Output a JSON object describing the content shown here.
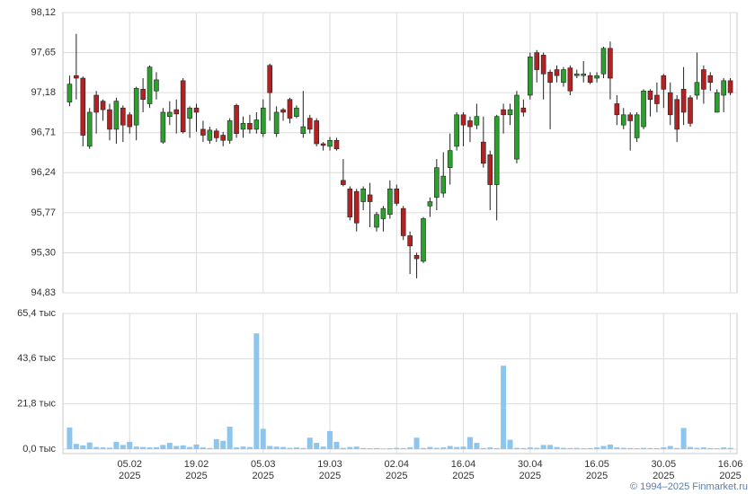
{
  "chart_data": [
    {
      "type": "candlestick",
      "up_color": "#2ca02c",
      "down_color": "#b22222",
      "grid": true,
      "ylim": [
        94.83,
        98.12
      ],
      "yticks": [
        {
          "value": 94.83,
          "label": "94,83"
        },
        {
          "value": 95.3,
          "label": "95,30"
        },
        {
          "value": 95.77,
          "label": "95,77"
        },
        {
          "value": 96.24,
          "label": "96,24"
        },
        {
          "value": 96.71,
          "label": "96,71"
        },
        {
          "value": 97.18,
          "label": "97,18"
        },
        {
          "value": 97.65,
          "label": "97,65"
        },
        {
          "value": 98.12,
          "label": "98,12"
        }
      ],
      "open": [
        97.07,
        97.38,
        97.35,
        96.55,
        97.15,
        97.08,
        96.98,
        96.75,
        97.0,
        96.92,
        96.8,
        97.22,
        97.05,
        97.2,
        96.6,
        96.9,
        96.98,
        97.32,
        96.88,
        97.0,
        96.75,
        96.62,
        96.73,
        96.68,
        96.62,
        97.03,
        96.75,
        96.82,
        96.75,
        96.7,
        97.5,
        96.7,
        96.98,
        97.1,
        96.9,
        96.7,
        96.88,
        96.85,
        96.58,
        96.55,
        96.62,
        96.15,
        96.05,
        96.02,
        95.9,
        95.98,
        95.6,
        95.7,
        95.75,
        96.05,
        95.82,
        95.5,
        95.27,
        95.2,
        95.85,
        95.95,
        96.0,
        96.3,
        96.55,
        96.92,
        96.85,
        96.8,
        96.6,
        96.45,
        96.1,
        96.98,
        96.92,
        96.4,
        97.0,
        97.15,
        97.65,
        97.62,
        97.42,
        97.45,
        97.3,
        97.47,
        97.38,
        97.38,
        97.38,
        97.35,
        97.4,
        97.7,
        97.05,
        96.8,
        96.92,
        96.65,
        96.78,
        97.2,
        97.15,
        97.38,
        97.18,
        97.1,
        97.22,
        97.12,
        97.15,
        97.45,
        97.38,
        96.95,
        97.15,
        97.32
      ],
      "high": [
        97.38,
        97.87,
        97.37,
        97.0,
        97.2,
        97.1,
        97.05,
        97.12,
        97.03,
        96.95,
        97.25,
        97.35,
        97.5,
        97.42,
        97.0,
        97.08,
        97.1,
        97.35,
        97.02,
        97.05,
        96.85,
        96.78,
        96.76,
        96.72,
        96.88,
        97.05,
        96.9,
        96.92,
        96.95,
        97.1,
        97.52,
        97.02,
        97.0,
        97.12,
        97.03,
        97.2,
        96.92,
        96.88,
        96.6,
        96.66,
        96.65,
        96.4,
        96.08,
        96.05,
        96.08,
        96.12,
        95.78,
        95.85,
        96.15,
        96.1,
        95.85,
        95.55,
        95.3,
        95.72,
        95.95,
        96.4,
        96.48,
        96.7,
        96.95,
        96.95,
        96.9,
        97.05,
        96.9,
        96.5,
        96.92,
        97.05,
        97.05,
        97.2,
        97.1,
        97.65,
        97.68,
        97.65,
        97.45,
        97.5,
        97.48,
        97.5,
        97.45,
        97.55,
        97.42,
        97.42,
        97.72,
        97.78,
        97.15,
        97.0,
        96.95,
        96.95,
        97.22,
        97.22,
        97.3,
        97.4,
        97.3,
        97.15,
        97.48,
        97.15,
        97.65,
        97.5,
        97.42,
        97.22,
        97.35,
        97.35
      ],
      "low": [
        97.02,
        97.1,
        96.55,
        96.52,
        96.7,
        96.85,
        96.62,
        96.58,
        96.6,
        96.7,
        96.62,
        96.95,
        97.0,
        97.1,
        96.58,
        96.8,
        96.7,
        96.7,
        96.65,
        96.72,
        96.6,
        96.58,
        96.6,
        96.55,
        96.58,
        96.65,
        96.65,
        96.7,
        96.7,
        96.66,
        96.85,
        96.66,
        96.85,
        96.82,
        96.88,
        96.65,
        96.7,
        96.55,
        96.5,
        96.5,
        96.5,
        96.08,
        95.68,
        95.55,
        95.8,
        95.6,
        95.55,
        95.55,
        95.7,
        95.85,
        95.45,
        95.05,
        95.0,
        95.18,
        95.72,
        95.8,
        95.95,
        96.1,
        96.5,
        96.55,
        96.6,
        96.75,
        96.3,
        95.8,
        95.68,
        96.7,
        96.8,
        96.35,
        96.9,
        97.1,
        97.3,
        97.1,
        96.75,
        97.3,
        97.25,
        97.15,
        97.35,
        97.3,
        97.28,
        97.3,
        97.35,
        97.1,
        96.8,
        96.75,
        96.5,
        96.6,
        96.75,
        96.9,
        96.95,
        97.0,
        96.8,
        96.6,
        96.8,
        96.78,
        97.1,
        97.05,
        97.2,
        96.95,
        96.95,
        97.15
      ],
      "close": [
        97.28,
        97.35,
        96.68,
        96.95,
        96.95,
        96.98,
        96.75,
        97.08,
        96.8,
        96.78,
        97.23,
        97.1,
        97.48,
        97.33,
        96.95,
        96.95,
        96.93,
        96.72,
        97.0,
        96.95,
        96.68,
        96.74,
        96.65,
        96.62,
        96.85,
        96.7,
        96.82,
        96.75,
        96.86,
        97.0,
        97.18,
        96.95,
        96.95,
        96.88,
        97.0,
        96.78,
        96.75,
        96.58,
        96.56,
        96.62,
        96.52,
        96.1,
        95.72,
        95.65,
        96.05,
        95.9,
        95.75,
        95.82,
        96.05,
        95.88,
        95.5,
        95.38,
        95.23,
        95.7,
        95.9,
        96.3,
        96.2,
        96.5,
        96.92,
        96.8,
        96.78,
        96.9,
        96.35,
        96.1,
        96.9,
        96.92,
        96.98,
        97.15,
        96.95,
        97.6,
        97.45,
        97.4,
        97.3,
        97.38,
        97.45,
        97.2,
        97.4,
        97.4,
        97.3,
        97.38,
        97.7,
        97.35,
        96.92,
        96.92,
        96.85,
        96.92,
        97.2,
        97.1,
        97.05,
        97.22,
        96.92,
        96.75,
        96.95,
        96.82,
        97.3,
        97.22,
        97.3,
        97.18,
        97.32,
        97.18
      ]
    },
    {
      "type": "bar",
      "color": "#8cc6ee",
      "grid": true,
      "ylim": [
        0,
        65.4
      ],
      "yticks": [
        {
          "value": 0,
          "label": "0,0 тыс"
        },
        {
          "value": 21.8,
          "label": "21,8 тыс"
        },
        {
          "value": 43.6,
          "label": "43,6 тыс"
        },
        {
          "value": 65.4,
          "label": "65,4 тыс"
        }
      ],
      "categories": [
        null,
        null,
        null,
        null,
        null,
        null,
        null,
        null,
        null,
        "05.02\n2025",
        null,
        null,
        null,
        null,
        null,
        null,
        null,
        null,
        null,
        "19.02\n2025",
        null,
        null,
        null,
        null,
        null,
        null,
        null,
        null,
        null,
        "05.03\n2025",
        null,
        null,
        null,
        null,
        null,
        null,
        null,
        null,
        null,
        "19.03\n2025",
        null,
        null,
        null,
        null,
        null,
        null,
        null,
        null,
        null,
        "02.04\n2025",
        null,
        null,
        null,
        null,
        null,
        null,
        null,
        null,
        null,
        "16.04\n2025",
        null,
        null,
        null,
        null,
        null,
        null,
        null,
        null,
        null,
        "30.04\n2025",
        null,
        null,
        null,
        null,
        null,
        null,
        null,
        null,
        null,
        "16.05\n2025",
        null,
        null,
        null,
        null,
        null,
        null,
        null,
        null,
        null,
        "30.05\n2025",
        null,
        null,
        null,
        null,
        null,
        null,
        null,
        null,
        null,
        "16.06\n2025"
      ],
      "values": [
        10.4,
        2.5,
        1.8,
        3.2,
        1.0,
        0.8,
        0.7,
        3.5,
        2.0,
        3.5,
        1.2,
        1.0,
        0.8,
        0.9,
        2.0,
        3.0,
        1.5,
        1.8,
        1.0,
        2.2,
        0.8,
        0.5,
        4.8,
        4.0,
        10.8,
        0.8,
        1.2,
        1.0,
        55.8,
        9.8,
        1.5,
        1.2,
        1.0,
        0.6,
        0.8,
        0.5,
        5.5,
        3.0,
        1.2,
        8.7,
        3.5,
        0.6,
        1.0,
        1.2,
        0.5,
        0.4,
        0.5,
        0.3,
        0.4,
        0.6,
        0.5,
        0.8,
        5.5,
        0.5,
        1.0,
        0.6,
        0.8,
        1.5,
        1.0,
        1.2,
        5.8,
        3.0,
        0.5,
        0.8,
        0.5,
        40.2,
        4.5,
        0.6,
        0.5,
        0.8,
        0.6,
        2.0,
        2.0,
        1.0,
        0.6,
        0.5,
        0.6,
        0.4,
        0.5,
        0.8,
        1.5,
        2.2,
        0.8,
        0.6,
        0.5,
        0.4,
        0.6,
        0.5,
        0.4,
        0.8,
        1.5,
        0.5,
        10.2,
        1.0,
        0.6,
        0.8,
        0.5,
        0.4,
        0.8,
        0.6
      ]
    }
  ],
  "footer": "© 1994–2025 Finmarket.ru"
}
